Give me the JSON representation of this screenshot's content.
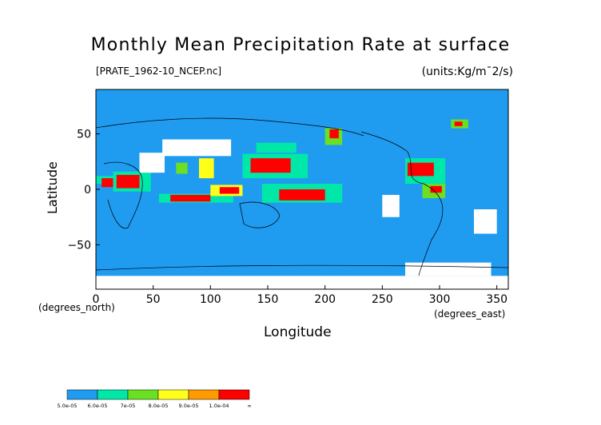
{
  "chart_data": {
    "type": "heatmap",
    "title": "Monthly Mean Precipitation Rate at surface",
    "file_label": "[PRATE_1962-10_NCEP.nc]",
    "units_label": "(units:Kg/m¯2/s)",
    "xlabel": "Longitude",
    "ylabel": "Latitude",
    "x_units": "(degrees_east)",
    "y_units": "(degrees_north)",
    "xlim": [
      0,
      360
    ],
    "ylim": [
      -90,
      90
    ],
    "x_ticks": [
      0,
      50,
      100,
      150,
      200,
      250,
      300,
      350
    ],
    "x_tick_labels": [
      "0",
      "50",
      "100",
      "150",
      "200",
      "250",
      "300",
      "350"
    ],
    "y_ticks": [
      -50,
      0,
      50
    ],
    "y_tick_labels": [
      "−50",
      "0",
      "50"
    ],
    "colorbar": {
      "colors": [
        "#1f9bf0",
        "#00e8a8",
        "#6be022",
        "#ffff1a",
        "#ff9a00",
        "#ff0000"
      ],
      "labels": [
        "5.0e-05",
        "6.0e-05",
        "7e-05",
        "8.0e-05",
        "9.0e-05",
        "1.0e-04",
        "∞"
      ]
    },
    "background_color": "#1f9bf0",
    "missing_color": "#ffffff",
    "regions": [
      {
        "level": 1,
        "lon": [
          0,
          16
        ],
        "lat": [
          5,
          12
        ]
      },
      {
        "level": 5,
        "lon": [
          5,
          15
        ],
        "lat": [
          2,
          10
        ]
      },
      {
        "level": 0,
        "lon": [
          0,
          10
        ],
        "lat": [
          20,
          35
        ]
      },
      {
        "level": 1,
        "lon": [
          15,
          48
        ],
        "lat": [
          -2,
          16
        ]
      },
      {
        "level": 5,
        "lon": [
          18,
          38
        ],
        "lat": [
          1,
          13
        ]
      },
      {
        "level": -1,
        "lon": [
          38,
          60
        ],
        "lat": [
          15,
          33
        ]
      },
      {
        "level": -1,
        "lon": [
          58,
          118
        ],
        "lat": [
          30,
          45
        ]
      },
      {
        "level": 2,
        "lon": [
          70,
          80
        ],
        "lat": [
          14,
          24
        ]
      },
      {
        "level": 3,
        "lon": [
          90,
          103
        ],
        "lat": [
          10,
          28
        ]
      },
      {
        "level": 1,
        "lon": [
          55,
          120
        ],
        "lat": [
          -12,
          -4
        ]
      },
      {
        "level": 5,
        "lon": [
          65,
          100
        ],
        "lat": [
          -11,
          -5
        ]
      },
      {
        "level": 3,
        "lon": [
          100,
          128
        ],
        "lat": [
          -6,
          4
        ]
      },
      {
        "level": 5,
        "lon": [
          108,
          125
        ],
        "lat": [
          -4,
          2
        ]
      },
      {
        "level": 1,
        "lon": [
          128,
          185
        ],
        "lat": [
          10,
          32
        ]
      },
      {
        "level": 5,
        "lon": [
          135,
          170
        ],
        "lat": [
          15,
          28
        ]
      },
      {
        "level": 1,
        "lon": [
          145,
          215
        ],
        "lat": [
          -12,
          5
        ]
      },
      {
        "level": 5,
        "lon": [
          160,
          200
        ],
        "lat": [
          -10,
          0
        ]
      },
      {
        "level": 1,
        "lon": [
          140,
          175
        ],
        "lat": [
          33,
          42
        ]
      },
      {
        "level": 2,
        "lon": [
          200,
          215
        ],
        "lat": [
          40,
          55
        ]
      },
      {
        "level": 5,
        "lon": [
          204,
          212
        ],
        "lat": [
          46,
          54
        ]
      },
      {
        "level": 1,
        "lon": [
          270,
          305
        ],
        "lat": [
          5,
          28
        ]
      },
      {
        "level": 5,
        "lon": [
          272,
          295
        ],
        "lat": [
          12,
          24
        ]
      },
      {
        "level": 2,
        "lon": [
          285,
          305
        ],
        "lat": [
          -8,
          5
        ]
      },
      {
        "level": 5,
        "lon": [
          292,
          302
        ],
        "lat": [
          -3,
          3
        ]
      },
      {
        "level": 2,
        "lon": [
          310,
          325
        ],
        "lat": [
          55,
          63
        ]
      },
      {
        "level": 5,
        "lon": [
          313,
          320
        ],
        "lat": [
          57,
          61
        ]
      },
      {
        "level": -1,
        "lon": [
          250,
          265
        ],
        "lat": [
          -25,
          -5
        ]
      },
      {
        "level": -1,
        "lon": [
          330,
          350
        ],
        "lat": [
          -40,
          -18
        ]
      },
      {
        "level": -1,
        "lon": [
          0,
          360
        ],
        "lat": [
          -90,
          -78
        ]
      },
      {
        "level": -1,
        "lon": [
          270,
          345
        ],
        "lat": [
          -78,
          -66
        ]
      }
    ]
  }
}
